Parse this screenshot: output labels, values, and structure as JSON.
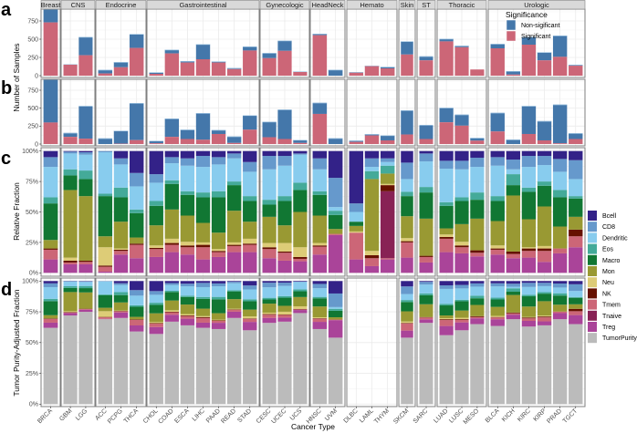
{
  "panel_letters": [
    "a",
    "b",
    "c",
    "d"
  ],
  "axis": {
    "y_ab": "Number of Samples",
    "y_c": "Relative Fraction",
    "y_d": "Tumor Purity-Adjusted Fraction",
    "x": "Cancer Type",
    "ticks_count": [
      "0",
      "250",
      "500",
      "750"
    ],
    "ticks_pct": [
      "0%",
      "25%",
      "50%",
      "75%",
      "100%"
    ]
  },
  "legend_significance": {
    "title": "Significance",
    "items": [
      {
        "label": "Non-sigificant",
        "color": "#4477aa"
      },
      {
        "label": "Significant",
        "color": "#cc6677"
      }
    ]
  },
  "legend_cells": [
    {
      "label": "Bcell",
      "color": "#332288"
    },
    {
      "label": "CD8",
      "color": "#6699cc"
    },
    {
      "label": "Dendritic",
      "color": "#88ccee"
    },
    {
      "label": "Eos",
      "color": "#44aa99"
    },
    {
      "label": "Macro",
      "color": "#117733"
    },
    {
      "label": "Mon",
      "color": "#999933"
    },
    {
      "label": "Neu",
      "color": "#ddcc77"
    },
    {
      "label": "NK",
      "color": "#661100"
    },
    {
      "label": "Tmem",
      "color": "#cc6677"
    },
    {
      "label": "Tnaive",
      "color": "#882255"
    },
    {
      "label": "Treg",
      "color": "#aa4499"
    },
    {
      "label": "TumorPurity",
      "color": "#bbbbbb"
    }
  ],
  "chart_data": {
    "type": "bar",
    "groups": [
      {
        "name": "Breast",
        "types": [
          "BRCA"
        ]
      },
      {
        "name": "CNS",
        "types": [
          "GBM",
          "LGG"
        ]
      },
      {
        "name": "Endocrine",
        "types": [
          "ACC",
          "PCPG",
          "THCA"
        ]
      },
      {
        "name": "Gastrointestinal",
        "types": [
          "CHOL",
          "COAD",
          "ESCA",
          "LIHC",
          "PAAD",
          "READ",
          "STAD"
        ]
      },
      {
        "name": "Gynecologic",
        "types": [
          "CESC",
          "UCEC",
          "UCS"
        ]
      },
      {
        "name": "HeadNeck",
        "types": [
          "HNSC",
          "UVM"
        ]
      },
      {
        "name": "Hemato",
        "types": [
          "DLBC",
          "LAML",
          "THYM"
        ]
      },
      {
        "name": "Skin",
        "types": [
          "SKCM"
        ]
      },
      {
        "name": "ST",
        "types": [
          "SARC"
        ]
      },
      {
        "name": "Thoracic",
        "types": [
          "LUAD",
          "LUSC",
          "MESO"
        ]
      },
      {
        "name": "Urologic",
        "types": [
          "BLCA",
          "KICH",
          "KIRC",
          "KIRP",
          "PRAD",
          "TGCT"
        ]
      }
    ],
    "categories": [
      "BRCA",
      "GBM",
      "LGG",
      "ACC",
      "PCPG",
      "THCA",
      "CHOL",
      "COAD",
      "ESCA",
      "LIHC",
      "PAAD",
      "READ",
      "STAD",
      "CESC",
      "UCEC",
      "UCS",
      "HNSC",
      "UVM",
      "DLBC",
      "LAML",
      "THYM",
      "SKCM",
      "SARC",
      "LUAD",
      "LUSC",
      "MESO",
      "BLCA",
      "KICH",
      "KIRC",
      "KIRP",
      "PRAD",
      "TGCT"
    ],
    "ylim_count": [
      0,
      915
    ],
    "panel_a": {
      "total": [
        1095,
        155,
        530,
        79,
        185,
        570,
        45,
        355,
        200,
        430,
        195,
        105,
        400,
        310,
        480,
        57,
        575,
        80,
        48,
        137,
        120,
        470,
        265,
        505,
        410,
        85,
        435,
        62,
        530,
        320,
        550,
        150
      ],
      "significant": [
        730,
        150,
        280,
        30,
        115,
        380,
        25,
        305,
        180,
        225,
        180,
        90,
        345,
        240,
        340,
        50,
        555,
        0,
        40,
        130,
        100,
        290,
        210,
        470,
        390,
        85,
        375,
        15,
        425,
        210,
        258,
        137
      ]
    },
    "panel_b": {
      "total": [
        1095,
        155,
        530,
        79,
        185,
        570,
        45,
        355,
        200,
        430,
        195,
        105,
        400,
        310,
        480,
        57,
        575,
        80,
        48,
        137,
        120,
        470,
        265,
        505,
        410,
        85,
        435,
        62,
        530,
        320,
        550,
        150
      ],
      "significant": [
        300,
        100,
        75,
        0,
        5,
        55,
        10,
        100,
        70,
        60,
        140,
        15,
        200,
        95,
        70,
        15,
        420,
        0,
        30,
        120,
        51,
        133,
        70,
        303,
        256,
        47,
        175,
        0,
        140,
        51,
        10,
        70
      ]
    },
    "stack_order": [
      "Treg",
      "Tmem",
      "Tnaive",
      "NK",
      "Neu",
      "Mon",
      "Macro",
      "Eos",
      "Dendritic",
      "CD8",
      "Bcell"
    ],
    "panel_c_fractions": [
      [
        0.11,
        0.08,
        0,
        0.01,
        0,
        0.07,
        0.3,
        0.05,
        0.25,
        0.08,
        0.05
      ],
      [
        0.07,
        0.015,
        0,
        0.015,
        0.025,
        0.555,
        0.12,
        0.05,
        0.13,
        0.015,
        0.005
      ],
      [
        0.07,
        0.02,
        0,
        0.01,
        0,
        0.53,
        0.14,
        0.07,
        0.13,
        0.02,
        0.01
      ],
      [
        0.01,
        0.04,
        0,
        0.01,
        0.15,
        0.09,
        0.33,
        0.02,
        0.34,
        0.01,
        0
      ],
      [
        0.15,
        0.03,
        0,
        0.01,
        0.01,
        0.22,
        0.2,
        0.08,
        0.19,
        0.05,
        0.06
      ],
      [
        0.12,
        0.11,
        0,
        0.01,
        0,
        0.05,
        0.2,
        0.03,
        0.19,
        0.11,
        0.18
      ],
      [
        0.13,
        0.065,
        0,
        0.01,
        0.02,
        0.165,
        0.16,
        0.04,
        0.15,
        0.07,
        0.19
      ],
      [
        0.17,
        0.06,
        0,
        0.015,
        0.035,
        0.24,
        0.21,
        0.03,
        0.14,
        0.05,
        0.05
      ],
      [
        0.15,
        0.06,
        0,
        0.015,
        0.03,
        0.215,
        0.17,
        0.03,
        0.21,
        0.06,
        0.06
      ],
      [
        0.11,
        0.1,
        0,
        0.02,
        0.02,
        0.16,
        0.21,
        0.04,
        0.21,
        0.09,
        0.04
      ],
      [
        0.13,
        0.04,
        0,
        0.01,
        0.015,
        0.135,
        0.29,
        0.05,
        0.22,
        0.06,
        0.05
      ],
      [
        0.17,
        0.05,
        0,
        0.01,
        0.02,
        0.26,
        0.21,
        0.03,
        0.19,
        0.04,
        0.02
      ],
      [
        0.17,
        0.06,
        0,
        0.01,
        0.04,
        0.14,
        0.17,
        0.04,
        0.2,
        0.08,
        0.09
      ],
      [
        0.12,
        0.075,
        0,
        0.015,
        0.035,
        0.215,
        0.1,
        0.04,
        0.25,
        0.11,
        0.04
      ],
      [
        0.1,
        0.065,
        0,
        0.01,
        0.07,
        0.145,
        0.2,
        0.04,
        0.25,
        0.08,
        0.04
      ],
      [
        0.095,
        0.02,
        0,
        0.015,
        0.08,
        0.29,
        0.18,
        0.06,
        0.23,
        0.01,
        0.02
      ],
      [
        0.15,
        0.065,
        0,
        0.01,
        0.02,
        0.225,
        0.17,
        0.03,
        0.18,
        0.09,
        0.06
      ],
      [
        0.31,
        0.01,
        0,
        0,
        0,
        0.04,
        0.115,
        0.035,
        0.03,
        0.24,
        0.22
      ],
      [
        0.11,
        0.22,
        0,
        0,
        0.01,
        0.045,
        0.035,
        0,
        0.08,
        0.07,
        0.43
      ],
      [
        0.055,
        0.065,
        0,
        0.025,
        0.035,
        0.59,
        0,
        0.065,
        0.035,
        0.07,
        0.06
      ],
      [
        0.11,
        0.01,
        0.55,
        0.05,
        0.01,
        0.085,
        0,
        0.065,
        0.03,
        0.03,
        0.06
      ],
      [
        0.125,
        0.125,
        0,
        0.01,
        0.025,
        0.18,
        0.165,
        0.035,
        0.105,
        0.135,
        0.095
      ],
      [
        0.085,
        0.045,
        0,
        0.01,
        0,
        0.305,
        0.215,
        0.045,
        0.21,
        0.065,
        0.02
      ],
      [
        0.17,
        0.11,
        0,
        0.015,
        0.02,
        0.05,
        0.185,
        0.03,
        0.275,
        0.065,
        0.08
      ],
      [
        0.16,
        0.05,
        0,
        0.015,
        0.03,
        0.145,
        0.19,
        0.03,
        0.23,
        0.07,
        0.08
      ],
      [
        0.135,
        0.03,
        0,
        0.02,
        0,
        0.26,
        0.155,
        0.06,
        0.21,
        0.075,
        0.055
      ],
      [
        0.15,
        0.04,
        0,
        0.01,
        0.025,
        0.2,
        0.165,
        0.04,
        0.25,
        0.07,
        0.05
      ],
      [
        0.12,
        0.035,
        0,
        0.02,
        0,
        0.46,
        0.085,
        0.09,
        0.04,
        0.08,
        0.07
      ],
      [
        0.125,
        0.055,
        0,
        0.02,
        0.01,
        0.23,
        0.225,
        0.035,
        0.17,
        0.09,
        0.04
      ],
      [
        0.09,
        0.09,
        0,
        0.02,
        0.02,
        0.325,
        0.17,
        0.035,
        0.135,
        0.075,
        0.04
      ],
      [
        0.16,
        0.04,
        0,
        0,
        0,
        0.18,
        0.24,
        0.06,
        0.15,
        0.105,
        0.065
      ],
      [
        0.21,
        0.09,
        0,
        0.055,
        0,
        0.105,
        0.15,
        0.02,
        0.14,
        0.155,
        0.075
      ]
    ],
    "tumor_purity": [
      0.62,
      0.72,
      0.75,
      0.69,
      0.7,
      0.59,
      0.57,
      0.67,
      0.64,
      0.62,
      0.61,
      0.7,
      0.6,
      0.66,
      0.67,
      0.74,
      0.61,
      0.54,
      null,
      null,
      null,
      0.54,
      0.66,
      0.56,
      0.6,
      0.65,
      0.635,
      0.69,
      0.63,
      0.64,
      0.69,
      0.65
    ]
  }
}
